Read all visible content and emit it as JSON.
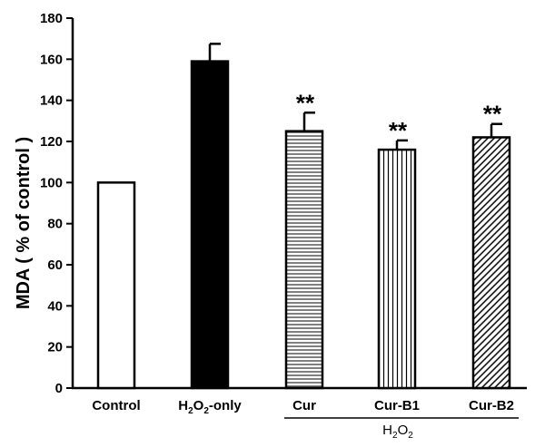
{
  "chart_data": {
    "type": "bar",
    "ylabel": "MDA ( % of control )",
    "ylim": [
      0,
      180
    ],
    "yticks": [
      0,
      20,
      40,
      60,
      80,
      100,
      120,
      140,
      160,
      180
    ],
    "categories": [
      {
        "base": "Control",
        "sub": "",
        "tail": ""
      },
      {
        "base": "H",
        "sub": "2",
        "mid": "O",
        "sub2": "2",
        "tail": "-only"
      },
      {
        "base": "Cur",
        "sub": "",
        "tail": ""
      },
      {
        "base": "Cur-B1",
        "sub": "",
        "tail": ""
      },
      {
        "base": "Cur-B2",
        "sub": "",
        "tail": ""
      }
    ],
    "values": [
      100,
      159,
      125,
      116,
      122
    ],
    "errors": [
      0,
      8.5,
      9,
      4.5,
      6.5
    ],
    "fills": [
      "none",
      "solid",
      "horizontal-lines",
      "vertical-lines",
      "diagonal-lines"
    ],
    "significance": [
      "",
      "",
      "**",
      "**",
      "**"
    ],
    "group_label": {
      "base": "H",
      "sub": "2",
      "mid": "O",
      "sub2": "2",
      "spans": [
        2,
        4
      ]
    },
    "colors": {
      "bar_stroke": "#000000",
      "solid_fill": "#000000",
      "background": "#ffffff"
    }
  }
}
